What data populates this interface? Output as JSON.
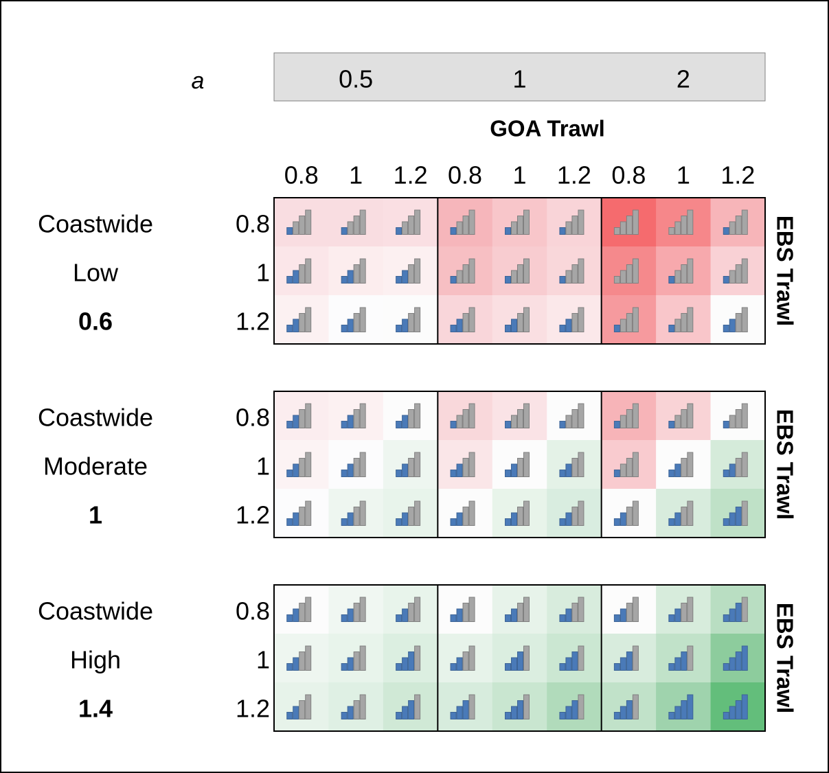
{
  "header": {
    "a_label": "a",
    "a_values": [
      "0.5",
      "1",
      "2"
    ],
    "goa_title": "GOA Trawl",
    "goa_values": [
      "0.8",
      "1",
      "1.2",
      "0.8",
      "1",
      "1.2",
      "0.8",
      "1",
      "1.2"
    ]
  },
  "panels": [
    {
      "labels": [
        "Coastwide",
        "Low",
        "0.6"
      ],
      "row_labels": [
        "0.8",
        "1",
        "1.2"
      ],
      "side_label": "EBS Trawl",
      "fills": [
        [
          "#f9dde1",
          "#f9dde1",
          "#fadfe3",
          "#f6b6bb",
          "#f8c6ca",
          "#f9d4d8",
          "#f56b6e",
          "#f6878a",
          "#f7b5b9"
        ],
        [
          "#fbe6e9",
          "#fcedee",
          "#fcf0f1",
          "#f7bfc3",
          "#f8ccd0",
          "#f9d7da",
          "#f5898c",
          "#f7a9ad",
          "#f9d1d5"
        ],
        [
          "#fcf1f2",
          "#fcfcfd",
          "#fcfcfc",
          "#f9d6da",
          "#fadfe2",
          "#fbe8ea",
          "#f69a9e",
          "#f9c6ca",
          "#fcfcfc"
        ]
      ],
      "blue_bars": [
        [
          1,
          1,
          1,
          1,
          1,
          1,
          0,
          0,
          1
        ],
        [
          2,
          2,
          2,
          1,
          1,
          1,
          0,
          1,
          1
        ],
        [
          2,
          2,
          2,
          2,
          2,
          2,
          1,
          1,
          2
        ]
      ]
    },
    {
      "labels": [
        "Coastwide",
        "Moderate",
        "1"
      ],
      "row_labels": [
        "0.8",
        "1",
        "1.2"
      ],
      "side_label": "EBS Trawl",
      "fills": [
        [
          "#fbedef",
          "#fcf1f2",
          "#fcfcfc",
          "#f9d8db",
          "#fae3e6",
          "#fcfcfc",
          "#f7b4b8",
          "#f9d3d6",
          "#fcfcfc"
        ],
        [
          "#fcf3f4",
          "#fcfcfd",
          "#eef6f0",
          "#fae6e8",
          "#fcfcfc",
          "#e4f2e7",
          "#f9cbcf",
          "#fcfcfc",
          "#d5ebda"
        ],
        [
          "#fcfcfd",
          "#eef6f0",
          "#e8f4eb",
          "#fcfcfc",
          "#e8f4ea",
          "#d9ede0",
          "#fcfcfc",
          "#d8ecdd",
          "#bfe1c7"
        ]
      ],
      "blue_bars": [
        [
          2,
          2,
          2,
          1,
          1,
          1,
          1,
          1,
          1
        ],
        [
          2,
          2,
          2,
          2,
          2,
          2,
          1,
          2,
          2
        ],
        [
          2,
          2,
          2,
          2,
          2,
          2,
          2,
          2,
          3
        ]
      ]
    },
    {
      "labels": [
        "Coastwide",
        "High",
        "1.4"
      ],
      "row_labels": [
        "0.8",
        "1",
        "1.2"
      ],
      "side_label": "EBS Trawl",
      "fills": [
        [
          "#fcfcfc",
          "#f0f7f2",
          "#e8f4eb",
          "#fcfcfc",
          "#e7f3ea",
          "#d8ecdd",
          "#fcfcfc",
          "#d7ecdc",
          "#b9dec2"
        ],
        [
          "#eef6f0",
          "#e8f4eb",
          "#dcefe1",
          "#e7f3ea",
          "#dbeee0",
          "#cbe7d2",
          "#d8ecdd",
          "#c1e2c9",
          "#8dcc9d"
        ],
        [
          "#e7f3ea",
          "#dff0e4",
          "#d0e9d6",
          "#d7ecdd",
          "#c9e6d0",
          "#b1dbbb",
          "#c1e2c9",
          "#9fd3ad",
          "#63be7b"
        ]
      ],
      "blue_bars": [
        [
          2,
          2,
          2,
          2,
          2,
          2,
          2,
          2,
          3
        ],
        [
          2,
          2,
          3,
          2,
          3,
          3,
          3,
          3,
          4
        ],
        [
          2,
          2,
          3,
          3,
          3,
          3,
          3,
          4,
          4
        ]
      ]
    }
  ]
}
